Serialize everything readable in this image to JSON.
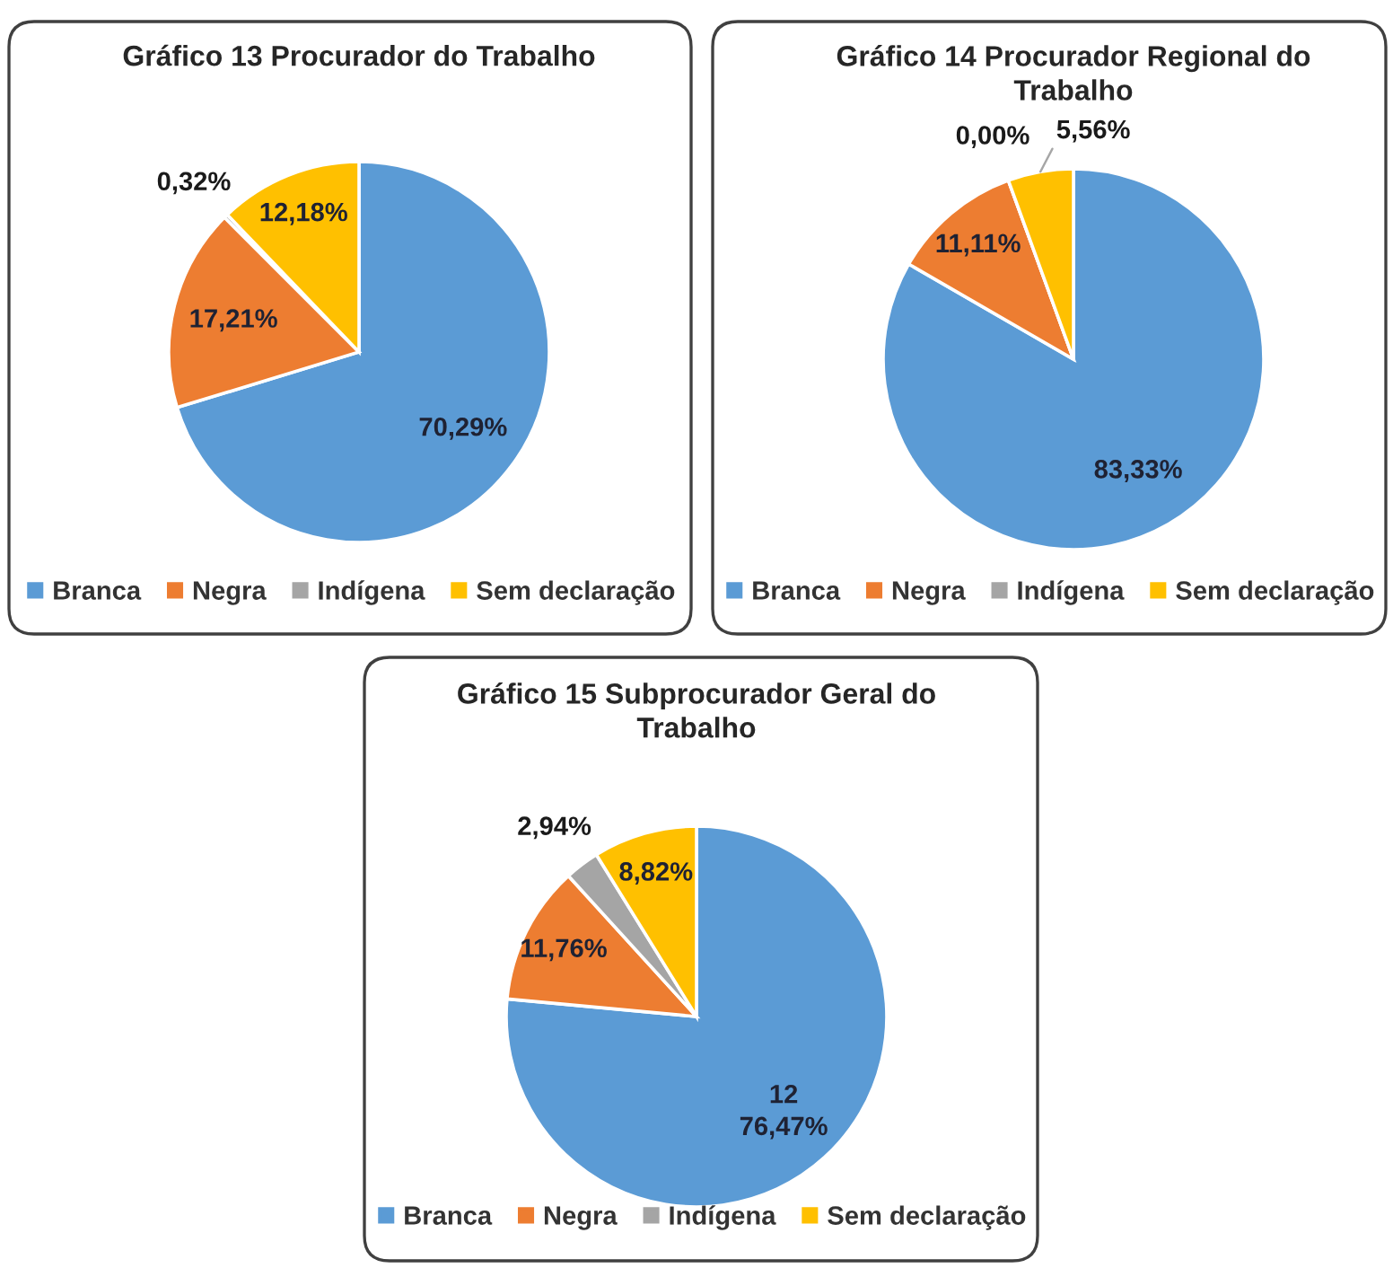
{
  "chart_data": [
    {
      "type": "pie",
      "title": "Gráfico 13 Procurador do Trabalho",
      "categories": [
        "Branca",
        "Negra",
        "Indígena",
        "Sem declaração"
      ],
      "values": [
        70.29,
        17.21,
        0.32,
        12.18
      ],
      "colors": [
        "#5b9bd5",
        "#ed7d31",
        "#a5a5a5",
        "#ffc000"
      ],
      "value_labels": [
        "70,29%",
        "17,21%",
        "0,32%",
        "12,18%"
      ],
      "legend": "bottom"
    },
    {
      "type": "pie",
      "title": "Gráfico 14 Procurador Regional do\nTrabalho",
      "categories": [
        "Branca",
        "Negra",
        "Indígena",
        "Sem declaração"
      ],
      "values": [
        83.33,
        11.11,
        0.0,
        5.56
      ],
      "colors": [
        "#5b9bd5",
        "#ed7d31",
        "#a5a5a5",
        "#ffc000"
      ],
      "value_labels": [
        "83,33%",
        "11,11%",
        "0,00%",
        "5,56%"
      ],
      "legend": "bottom"
    },
    {
      "type": "pie",
      "title": "Gráfico 15 Subprocurador Geral do\nTrabalho",
      "categories": [
        "Branca",
        "Negra",
        "Indígena",
        "Sem declaração"
      ],
      "values": [
        76.47,
        11.76,
        2.94,
        8.82
      ],
      "colors": [
        "#5b9bd5",
        "#ed7d31",
        "#a5a5a5",
        "#ffc000"
      ],
      "value_labels": [
        "12\n76,47%",
        "11,76%",
        "2,94%",
        "8,82%"
      ],
      "legend": "bottom"
    }
  ]
}
